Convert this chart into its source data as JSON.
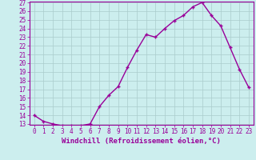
{
  "x": [
    0,
    1,
    2,
    3,
    4,
    5,
    6,
    7,
    8,
    9,
    10,
    11,
    12,
    13,
    14,
    15,
    16,
    17,
    18,
    19,
    20,
    21,
    22,
    23
  ],
  "y": [
    14,
    13.3,
    13,
    12.8,
    12.8,
    12.8,
    13,
    15,
    16.3,
    17.3,
    19.5,
    21.5,
    23.3,
    23,
    24,
    24.9,
    25.5,
    26.5,
    27,
    25.5,
    24.3,
    21.8,
    19.3,
    17.2
  ],
  "line_color": "#990099",
  "marker": "+",
  "marker_color": "#990099",
  "bg_color": "#cceeee",
  "grid_color": "#aacccc",
  "xlabel": "Windchill (Refroidissement éolien,°C)",
  "ylim": [
    13,
    27
  ],
  "xlim": [
    -0.5,
    23.5
  ],
  "yticks": [
    13,
    14,
    15,
    16,
    17,
    18,
    19,
    20,
    21,
    22,
    23,
    24,
    25,
    26,
    27
  ],
  "xticks": [
    0,
    1,
    2,
    3,
    4,
    5,
    6,
    7,
    8,
    9,
    10,
    11,
    12,
    13,
    14,
    15,
    16,
    17,
    18,
    19,
    20,
    21,
    22,
    23
  ],
  "xlabel_fontsize": 6.5,
  "tick_fontsize": 5.5,
  "line_width": 1.0,
  "marker_size": 3.5
}
